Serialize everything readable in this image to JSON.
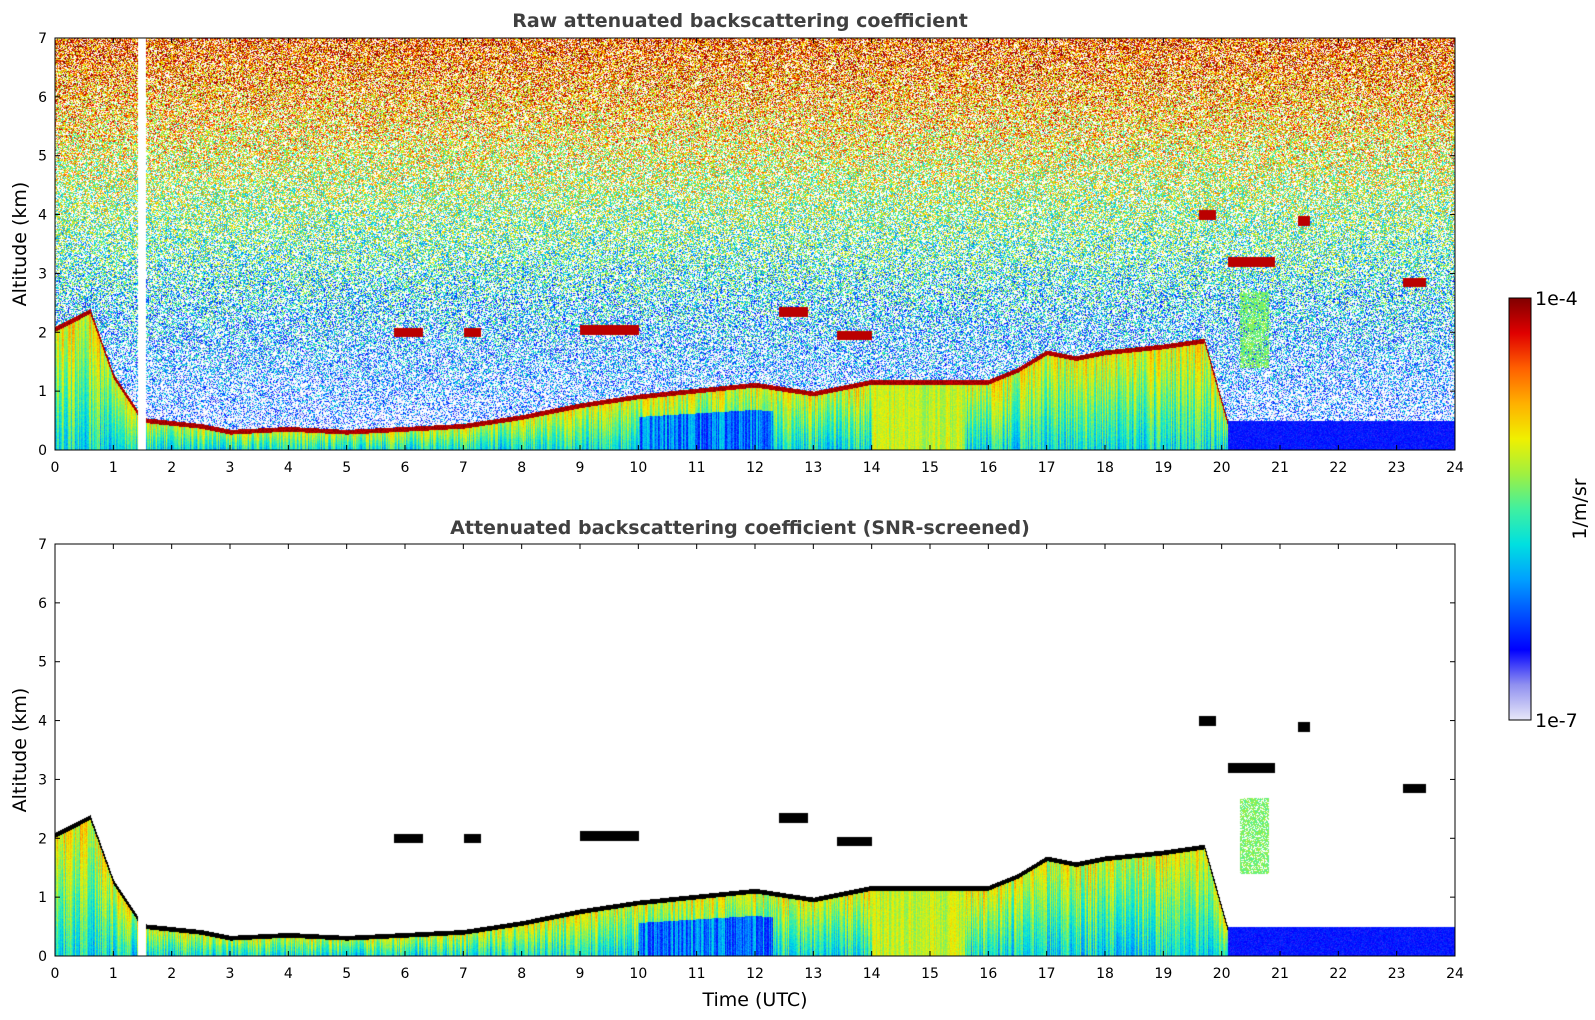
{
  "chart_data": [
    {
      "type": "heatmap",
      "title": "Raw attenuated backscattering coefficient",
      "xlabel": "",
      "ylabel": "Altitude (km)",
      "xlim": [
        0,
        24
      ],
      "ylim": [
        0,
        7
      ],
      "x_ticks": [
        "0",
        "1",
        "2",
        "3",
        "4",
        "5",
        "6",
        "7",
        "8",
        "9",
        "10",
        "11",
        "12",
        "13",
        "14",
        "15",
        "16",
        "17",
        "18",
        "19",
        "20",
        "21",
        "22",
        "23",
        "24"
      ],
      "y_ticks": [
        "0",
        "1",
        "2",
        "3",
        "4",
        "5",
        "6",
        "7"
      ],
      "screened": false,
      "aerosol_layer_top_km": [
        [
          0,
          2.1
        ],
        [
          0.6,
          2.4
        ],
        [
          1.0,
          1.3
        ],
        [
          1.5,
          0.55
        ],
        [
          2.5,
          0.45
        ],
        [
          3.0,
          0.35
        ],
        [
          4.0,
          0.4
        ],
        [
          5.0,
          0.35
        ],
        [
          6.0,
          0.4
        ],
        [
          7.0,
          0.45
        ],
        [
          8.0,
          0.6
        ],
        [
          9.0,
          0.8
        ],
        [
          10.0,
          0.95
        ],
        [
          11.0,
          1.05
        ],
        [
          12.0,
          1.15
        ],
        [
          13.0,
          1.0
        ],
        [
          14.0,
          1.2
        ],
        [
          15.0,
          1.2
        ],
        [
          16.0,
          1.2
        ],
        [
          16.5,
          1.4
        ],
        [
          17.0,
          1.7
        ],
        [
          17.5,
          1.6
        ],
        [
          18.0,
          1.7
        ],
        [
          19.0,
          1.8
        ],
        [
          19.7,
          1.9
        ],
        [
          20.1,
          0.5
        ],
        [
          24.0,
          0.5
        ]
      ],
      "cloud_layers": [
        {
          "x0": 5.8,
          "x1": 6.3,
          "alt_km": 2.0
        },
        {
          "x0": 7.0,
          "x1": 7.3,
          "alt_km": 2.0
        },
        {
          "x0": 9.0,
          "x1": 10.0,
          "alt_km": 2.05
        },
        {
          "x0": 12.4,
          "x1": 12.9,
          "alt_km": 2.35
        },
        {
          "x0": 13.4,
          "x1": 14.0,
          "alt_km": 1.95
        },
        {
          "x0": 19.6,
          "x1": 19.9,
          "alt_km": 4.0
        },
        {
          "x0": 20.1,
          "x1": 20.9,
          "alt_km": 3.2
        },
        {
          "x0": 21.3,
          "x1": 21.5,
          "alt_km": 3.9
        },
        {
          "x0": 23.1,
          "x1": 23.5,
          "alt_km": 2.85
        }
      ]
    },
    {
      "type": "heatmap",
      "title": "Attenuated backscattering coefficient (SNR-screened)",
      "xlabel": "Time (UTC)",
      "ylabel": "Altitude (km)",
      "xlim": [
        0,
        24
      ],
      "ylim": [
        0,
        7
      ],
      "x_ticks": [
        "0",
        "1",
        "2",
        "3",
        "4",
        "5",
        "6",
        "7",
        "8",
        "9",
        "10",
        "11",
        "12",
        "13",
        "14",
        "15",
        "16",
        "17",
        "18",
        "19",
        "20",
        "21",
        "22",
        "23",
        "24"
      ],
      "y_ticks": [
        "0",
        "1",
        "2",
        "3",
        "4",
        "5",
        "6",
        "7"
      ],
      "screened": true
    }
  ],
  "colorbar": {
    "label": "1/m/sr",
    "max_label": "1e-4",
    "min_label": "1e-7",
    "scale": "log",
    "range": [
      1e-07,
      0.0001
    ],
    "colormap": [
      "#e8e8f8",
      "#9090f0",
      "#0000ff",
      "#0050ff",
      "#00a0ff",
      "#00e0e0",
      "#40f0a0",
      "#a0f040",
      "#f0f000",
      "#ffb000",
      "#ff6000",
      "#e00000",
      "#800000"
    ]
  }
}
